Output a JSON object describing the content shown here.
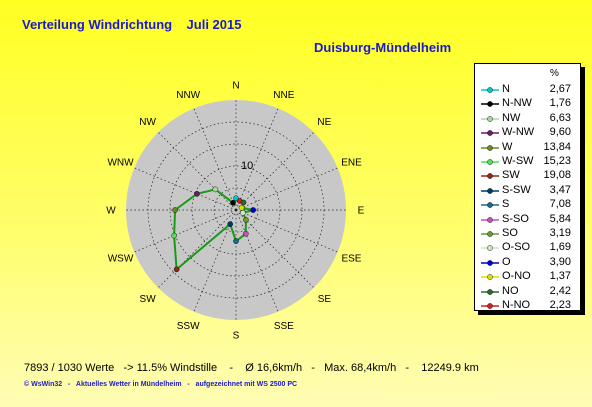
{
  "chart_data": {
    "type": "polar-line",
    "title": "Verteilung Windrichtung    Juli 2015",
    "subtitle": "Duisburg-Mündelheim",
    "legend_unit": "%",
    "ring_label": "10",
    "ring_step": 5,
    "radial_max": 25,
    "directions": [
      "N",
      "NNE",
      "NE",
      "ENE",
      "E",
      "ESE",
      "SE",
      "SSE",
      "S",
      "SSW",
      "SW",
      "WSW",
      "W",
      "WNW",
      "NW",
      "NNW"
    ],
    "series": [
      {
        "label": "N",
        "value": 2.67,
        "color": "#00c8c8",
        "dir": "N"
      },
      {
        "label": "N-NW",
        "value": 1.76,
        "color": "#000000",
        "dir": "NNW"
      },
      {
        "label": "NW",
        "value": 6.63,
        "color": "#a8d8a0",
        "dir": "NW"
      },
      {
        "label": "W-NW",
        "value": 9.6,
        "color": "#6a1a6a",
        "dir": "WNW"
      },
      {
        "label": "W",
        "value": 13.84,
        "color": "#6a8a20",
        "dir": "W"
      },
      {
        "label": "W-SW",
        "value": 15.23,
        "color": "#50e050",
        "dir": "WSW"
      },
      {
        "label": "SW",
        "value": 19.08,
        "color": "#8a2a1a",
        "dir": "SW"
      },
      {
        "label": "S-SW",
        "value": 3.47,
        "color": "#003a6a",
        "dir": "SSW"
      },
      {
        "label": "S",
        "value": 7.08,
        "color": "#1a6a8a",
        "dir": "S"
      },
      {
        "label": "S-SO",
        "value": 5.84,
        "color": "#c050c0",
        "dir": "SSE"
      },
      {
        "label": "SO",
        "value": 3.19,
        "color": "#6a9a30",
        "dir": "SE"
      },
      {
        "label": "O-SO",
        "value": 1.69,
        "color": "#c8e8c0",
        "dir": "ESE"
      },
      {
        "label": "O",
        "value": 3.9,
        "color": "#0000cc",
        "dir": "E"
      },
      {
        "label": "O-NO",
        "value": 1.37,
        "color": "#e0e000",
        "dir": "ENE"
      },
      {
        "label": "NO",
        "value": 2.42,
        "color": "#2a6a2a",
        "dir": "NE"
      },
      {
        "label": "N-NO",
        "value": 2.23,
        "color": "#d02020",
        "dir": "NNE"
      }
    ],
    "summary": "7893 / 1030 Werte   -> 11.5% Windstille    -    Ø 16,6km/h   -   Max. 68,4km/h   -    12249.9 km",
    "credits": "© WsWin32   -   Aktuelles Wetter in Mündelheim   -   aufgezeichnet mit WS 2500 PC",
    "colors": {
      "background_top": "#ffff22",
      "title_text": "#1a1acc",
      "rose_fill": "#c8c8c8",
      "line": "#1a9a1a"
    }
  }
}
